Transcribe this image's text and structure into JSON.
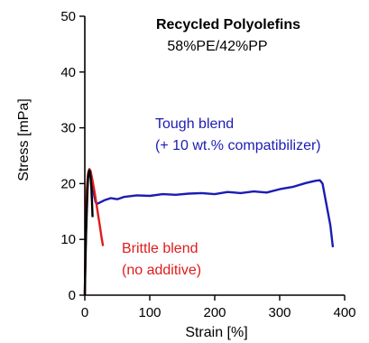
{
  "chart_data": {
    "type": "line",
    "title": "Recycled Polyolefins",
    "subtitle": "58%PE/42%PP",
    "xlabel": "Strain [%]",
    "ylabel": "Stress [mPa]",
    "xlim": [
      0,
      400
    ],
    "ylim": [
      0,
      50
    ],
    "xticks": [
      0,
      100,
      200,
      300,
      400
    ],
    "yticks": [
      0,
      10,
      20,
      30,
      40,
      50
    ],
    "grid": false,
    "series": [
      {
        "name_lines": [
          "Tough blend",
          "(+ 10 wt.% compatibilizer)"
        ],
        "color": "#1c1cb4",
        "points": [
          [
            0,
            0
          ],
          [
            1,
            8
          ],
          [
            3,
            17
          ],
          [
            5,
            21.5
          ],
          [
            7,
            22.3
          ],
          [
            9,
            21.8
          ],
          [
            11,
            20.5
          ],
          [
            13,
            18.8
          ],
          [
            15,
            17.5
          ],
          [
            17,
            16.6
          ],
          [
            20,
            16.4
          ],
          [
            30,
            17.0
          ],
          [
            40,
            17.4
          ],
          [
            50,
            17.2
          ],
          [
            60,
            17.6
          ],
          [
            80,
            17.9
          ],
          [
            100,
            17.8
          ],
          [
            120,
            18.1
          ],
          [
            140,
            18.0
          ],
          [
            160,
            18.2
          ],
          [
            180,
            18.3
          ],
          [
            200,
            18.1
          ],
          [
            220,
            18.5
          ],
          [
            240,
            18.3
          ],
          [
            260,
            18.6
          ],
          [
            280,
            18.4
          ],
          [
            300,
            19.0
          ],
          [
            320,
            19.4
          ],
          [
            340,
            20.1
          ],
          [
            355,
            20.5
          ],
          [
            362,
            20.6
          ],
          [
            366,
            20.0
          ],
          [
            370,
            17.5
          ],
          [
            374,
            15.0
          ],
          [
            378,
            12.5
          ],
          [
            381,
            9.5
          ],
          [
            382,
            8.6
          ]
        ]
      },
      {
        "name_lines": [
          "Brittle blend",
          "(no additive)"
        ],
        "color": "#e01b1b",
        "points": [
          [
            0,
            0
          ],
          [
            1,
            9
          ],
          [
            2,
            15
          ],
          [
            3,
            19
          ],
          [
            5,
            21.8
          ],
          [
            7,
            22.6
          ],
          [
            9,
            22.2
          ],
          [
            12,
            20.5
          ],
          [
            15,
            18.5
          ],
          [
            19,
            15.5
          ],
          [
            23,
            12.5
          ],
          [
            26,
            10.2
          ],
          [
            28,
            8.8
          ]
        ]
      },
      {
        "color": "#000000",
        "points": [
          [
            0,
            0
          ],
          [
            1,
            6
          ],
          [
            2,
            11
          ],
          [
            3,
            15
          ],
          [
            4,
            18.5
          ],
          [
            5,
            21
          ],
          [
            6,
            22.1
          ],
          [
            7,
            22.4
          ],
          [
            8,
            22.0
          ],
          [
            9,
            21.0
          ],
          [
            10,
            19.5
          ],
          [
            11,
            17.0
          ],
          [
            12,
            14.0
          ]
        ]
      }
    ]
  }
}
